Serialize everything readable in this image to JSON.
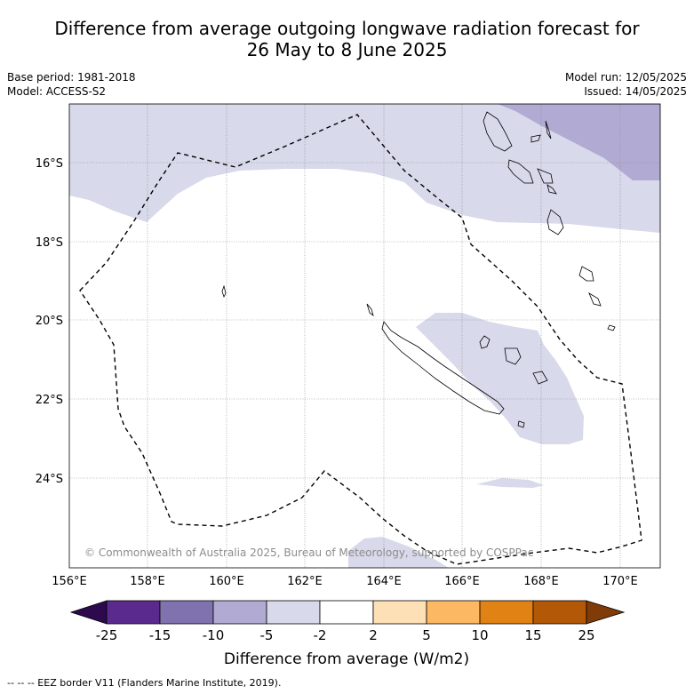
{
  "title_line1": "Difference from average outgoing longwave radiation forecast for",
  "title_line2": "26 May to 8 June 2025",
  "base_period": "Base period: 1981-2018",
  "model": "Model: ACCESS-S2",
  "model_run": "Model run: 12/05/2025",
  "issued": "Issued: 14/05/2025",
  "copyright": "© Commonwealth of Australia 2025, Bureau of Meteorology, supported by COSPPac",
  "footer": "--  --  -- EEZ border V11 (Flanders Marine Institute, 2019).",
  "map": {
    "lon_labels": [
      "156°E",
      "158°E",
      "160°E",
      "162°E",
      "164°E",
      "166°E",
      "168°E",
      "170°E"
    ],
    "lat_labels": [
      "16°S",
      "18°S",
      "20°S",
      "22°S",
      "24°S"
    ],
    "extent": {
      "lon_min": 156,
      "lon_max": 171,
      "lat_min": -26.3,
      "lat_max": -14.5
    }
  },
  "colorbar": {
    "title": "Difference from average (W/m2)",
    "ticks": [
      "-25",
      "-15",
      "-10",
      "-5",
      "-2",
      "2",
      "5",
      "10",
      "15",
      "25"
    ],
    "colors": [
      "#2d0a4e",
      "#5b2a8e",
      "#8072ae",
      "#b1abd4",
      "#d8d9ea",
      "#ffffff",
      "#fee0b6",
      "#fdb863",
      "#e08214",
      "#b35806",
      "#7f3b08"
    ]
  },
  "colors": {
    "light_purple": "#d8d9ea",
    "mid_purple": "#b1abd4"
  }
}
